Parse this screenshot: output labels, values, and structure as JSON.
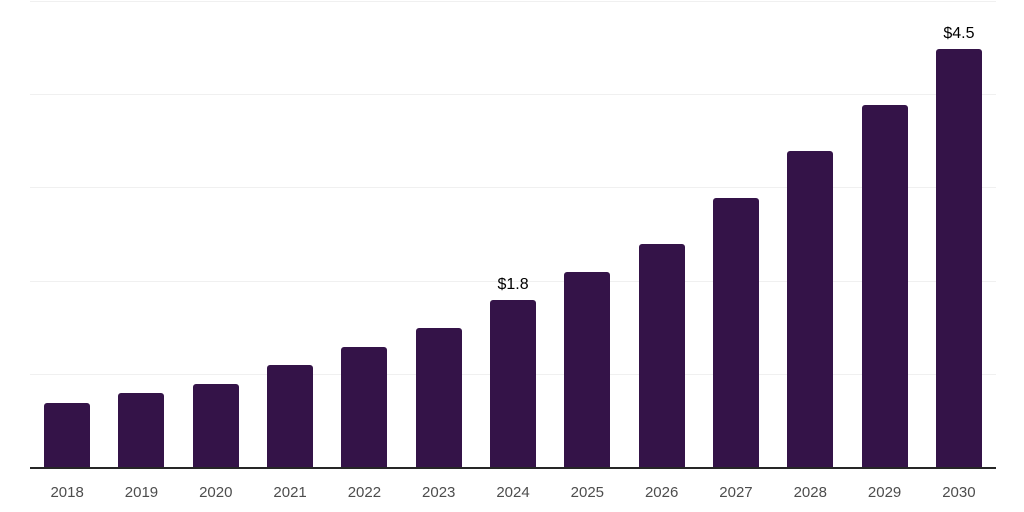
{
  "chart_data": {
    "type": "bar",
    "title": "",
    "xlabel": "",
    "ylabel": "",
    "categories": [
      "2018",
      "2019",
      "2020",
      "2021",
      "2022",
      "2023",
      "2024",
      "2025",
      "2026",
      "2027",
      "2028",
      "2029",
      "2030"
    ],
    "values": [
      0.7,
      0.8,
      0.9,
      1.1,
      1.3,
      1.5,
      1.8,
      2.1,
      2.4,
      2.9,
      3.4,
      3.9,
      4.5
    ],
    "data_labels": {
      "2024": "$1.8",
      "2030": "$4.5"
    },
    "ylim": [
      0,
      5
    ],
    "gridline_values": [
      1,
      2,
      3,
      4,
      5
    ],
    "grid": "on",
    "legend": "none",
    "y_axis_tick_labels_visible": false,
    "colors": {
      "bar": "#341348",
      "axis": "#262626",
      "grid": "#f0f0f0",
      "tick_label": "#4d4d4d",
      "data_label": "#000000",
      "background": "#ffffff"
    }
  }
}
